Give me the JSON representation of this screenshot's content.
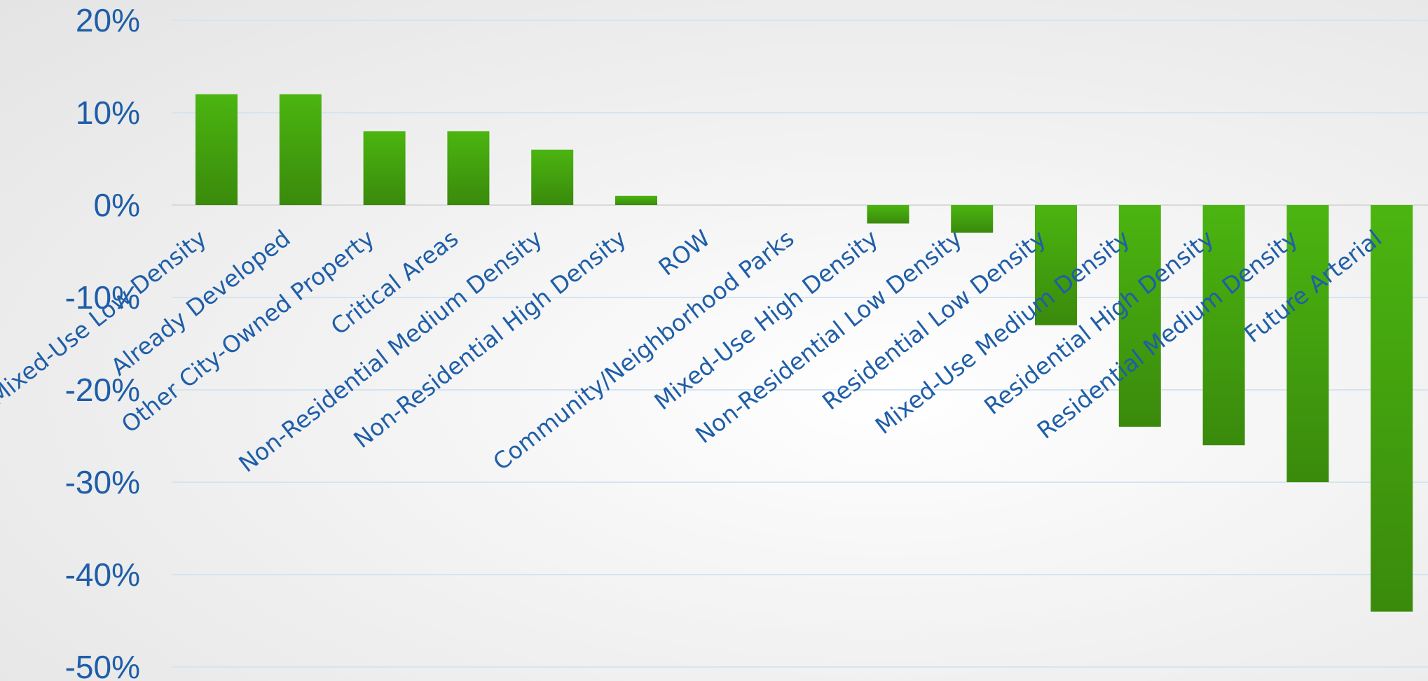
{
  "chart_data": {
    "type": "bar",
    "title": "",
    "xlabel": "",
    "ylabel": "",
    "ylim": [
      -50,
      20
    ],
    "yticks": [
      20,
      10,
      0,
      -10,
      -20,
      -30,
      -40,
      -50
    ],
    "ytick_labels": [
      "20%",
      "10%",
      "0%",
      "-10%",
      "-20%",
      "-30%",
      "-40%",
      "-50%"
    ],
    "grid": true,
    "legend": "none",
    "categories": [
      "Mixed-Use Low Density",
      "Already Developed",
      "Other City-Owned Property",
      "Critical Areas",
      "Non-Residential Medium Density",
      "Non-Residential High Density",
      "ROW",
      "Community/Neighborhood Parks",
      "Mixed-Use High Density",
      "Non-Residential Low Density",
      "Residential Low Density",
      "Mixed-Use Medium Density",
      "Residential High Density",
      "Residential Medium Density",
      "Future Arterial"
    ],
    "values": [
      12,
      12,
      8,
      8,
      6,
      1,
      0,
      0,
      -2,
      -3,
      -13,
      -24,
      -26,
      -30,
      -44
    ],
    "colors": {
      "bar_top": "#4bb510",
      "bar_bottom": "#3a8a0c",
      "text": "#1f5ea8",
      "gridline": "#d6e4f0"
    }
  }
}
